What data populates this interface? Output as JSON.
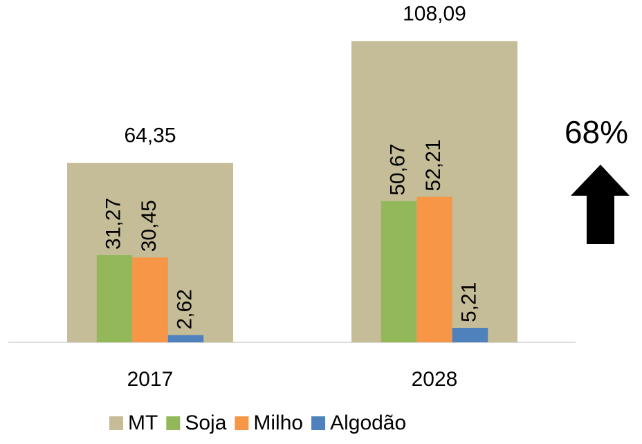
{
  "chart_data": {
    "type": "bar",
    "categories": [
      "2017",
      "2028"
    ],
    "series": [
      {
        "name": "MT",
        "color": "#c5bd97",
        "values": [
          64.35,
          108.09
        ],
        "value_labels": [
          "64,35",
          "108,09"
        ]
      },
      {
        "name": "Soja",
        "color": "#93b85a",
        "values": [
          31.27,
          50.67
        ],
        "value_labels": [
          "31,27",
          "50,67"
        ]
      },
      {
        "name": "Milho",
        "color": "#f79646",
        "values": [
          30.45,
          52.21
        ],
        "value_labels": [
          "30,45",
          "52,21"
        ]
      },
      {
        "name": "Algodão",
        "color": "#4f81bd",
        "values": [
          2.62,
          5.21
        ],
        "value_labels": [
          "2,62",
          "5,21"
        ]
      }
    ],
    "annotation": "68%"
  }
}
